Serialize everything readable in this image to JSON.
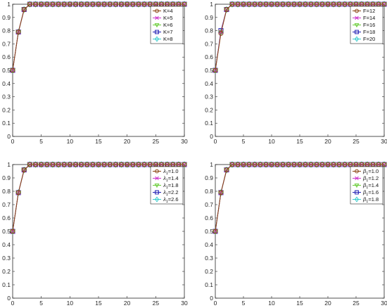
{
  "chart_data": [
    {
      "type": "line",
      "title": "",
      "xlabel": "",
      "ylabel": "",
      "xlim": [
        0,
        30
      ],
      "ylim": [
        0,
        1
      ],
      "xticks": [
        "0",
        "5",
        "10",
        "15",
        "20",
        "25",
        "30"
      ],
      "yticks": [
        "0",
        "0.1",
        "0.2",
        "0.3",
        "0.4",
        "0.5",
        "0.6",
        "0.7",
        "0.8",
        "0.9",
        "1"
      ],
      "legend_position": "top-right",
      "grid": false,
      "x": [
        0,
        1,
        2,
        3,
        4,
        5,
        6,
        7,
        8,
        9,
        10,
        11,
        12,
        13,
        14,
        15,
        16,
        17,
        18,
        19,
        20,
        21,
        22,
        23,
        24,
        25,
        26,
        27,
        28,
        29,
        30
      ],
      "series": [
        {
          "name": "K=4",
          "color": "#8b4513",
          "marker": "circle",
          "values": [
            0.5,
            0.79,
            0.96,
            1,
            1,
            1,
            1,
            1,
            1,
            1,
            1,
            1,
            1,
            1,
            1,
            1,
            1,
            1,
            1,
            1,
            1,
            1,
            1,
            1,
            1,
            1,
            1,
            1,
            1,
            1,
            1
          ]
        },
        {
          "name": "K=5",
          "color": "#cc33cc",
          "marker": "x",
          "values": [
            0.5,
            0.79,
            0.96,
            1,
            1,
            1,
            1,
            1,
            1,
            1,
            1,
            1,
            1,
            1,
            1,
            1,
            1,
            1,
            1,
            1,
            1,
            1,
            1,
            1,
            1,
            1,
            1,
            1,
            1,
            1,
            1
          ]
        },
        {
          "name": "K=6",
          "color": "#66cc33",
          "marker": "triangle-down",
          "values": [
            0.5,
            0.79,
            0.96,
            1,
            1,
            1,
            1,
            1,
            1,
            1,
            1,
            1,
            1,
            1,
            1,
            1,
            1,
            1,
            1,
            1,
            1,
            1,
            1,
            1,
            1,
            1,
            1,
            1,
            1,
            1,
            1
          ]
        },
        {
          "name": "K=7",
          "color": "#1f1fb4",
          "marker": "square",
          "values": [
            0.5,
            0.79,
            0.96,
            1,
            1,
            1,
            1,
            1,
            1,
            1,
            1,
            1,
            1,
            1,
            1,
            1,
            1,
            1,
            1,
            1,
            1,
            1,
            1,
            1,
            1,
            1,
            1,
            1,
            1,
            1,
            1
          ]
        },
        {
          "name": "K=8",
          "color": "#33cccc",
          "marker": "diamond",
          "values": [
            0.5,
            0.79,
            0.96,
            1,
            1,
            1,
            1,
            1,
            1,
            1,
            1,
            1,
            1,
            1,
            1,
            1,
            1,
            1,
            1,
            1,
            1,
            1,
            1,
            1,
            1,
            1,
            1,
            1,
            1,
            1,
            1
          ]
        }
      ]
    },
    {
      "type": "line",
      "title": "",
      "xlabel": "",
      "ylabel": "",
      "xlim": [
        0,
        30
      ],
      "ylim": [
        0,
        1
      ],
      "xticks": [
        "0",
        "5",
        "10",
        "15",
        "20",
        "25",
        "30"
      ],
      "yticks": [
        "0",
        "0.1",
        "0.2",
        "0.3",
        "0.4",
        "0.5",
        "0.6",
        "0.7",
        "0.8",
        "0.9",
        "1"
      ],
      "legend_position": "top-right",
      "grid": false,
      "x": [
        0,
        1,
        2,
        3,
        4,
        5,
        6,
        7,
        8,
        9,
        10,
        11,
        12,
        13,
        14,
        15,
        16,
        17,
        18,
        19,
        20,
        21,
        22,
        23,
        24,
        25,
        26,
        27,
        28,
        29,
        30
      ],
      "series": [
        {
          "name": "F=12",
          "color": "#8b4513",
          "marker": "circle",
          "values": [
            0.5,
            0.78,
            0.96,
            1,
            1,
            1,
            1,
            1,
            1,
            1,
            1,
            1,
            1,
            1,
            1,
            1,
            1,
            1,
            1,
            1,
            1,
            1,
            1,
            1,
            1,
            1,
            1,
            1,
            1,
            1,
            1
          ]
        },
        {
          "name": "F=14",
          "color": "#cc33cc",
          "marker": "x",
          "values": [
            0.5,
            0.79,
            0.96,
            1,
            1,
            1,
            1,
            1,
            1,
            1,
            1,
            1,
            1,
            1,
            1,
            1,
            1,
            1,
            1,
            1,
            1,
            1,
            1,
            1,
            1,
            1,
            1,
            1,
            1,
            1,
            1
          ]
        },
        {
          "name": "F=16",
          "color": "#66cc33",
          "marker": "triangle-down",
          "values": [
            0.5,
            0.79,
            0.96,
            1,
            1,
            1,
            1,
            1,
            1,
            1,
            1,
            1,
            1,
            1,
            1,
            1,
            1,
            1,
            1,
            1,
            1,
            1,
            1,
            1,
            1,
            1,
            1,
            1,
            1,
            1,
            1
          ]
        },
        {
          "name": "F=18",
          "color": "#1f1fb4",
          "marker": "square",
          "values": [
            0.5,
            0.8,
            0.96,
            1,
            1,
            1,
            1,
            1,
            1,
            1,
            1,
            1,
            1,
            1,
            1,
            1,
            1,
            1,
            1,
            1,
            1,
            1,
            1,
            1,
            1,
            1,
            1,
            1,
            1,
            1,
            1
          ]
        },
        {
          "name": "F=20",
          "color": "#33cccc",
          "marker": "diamond",
          "values": [
            0.5,
            0.79,
            0.96,
            1,
            1,
            1,
            1,
            1,
            1,
            1,
            1,
            1,
            1,
            1,
            1,
            1,
            1,
            1,
            1,
            1,
            1,
            1,
            1,
            1,
            1,
            1,
            1,
            1,
            1,
            1,
            1
          ]
        }
      ]
    },
    {
      "type": "line",
      "title": "",
      "xlabel": "",
      "ylabel": "",
      "xlim": [
        0,
        30
      ],
      "ylim": [
        0,
        1
      ],
      "xticks": [
        "0",
        "5",
        "10",
        "15",
        "20",
        "25",
        "30"
      ],
      "yticks": [
        "0",
        "0.1",
        "0.2",
        "0.3",
        "0.4",
        "0.5",
        "0.6",
        "0.7",
        "0.8",
        "0.9",
        "1"
      ],
      "legend_position": "top-right",
      "grid": false,
      "x": [
        0,
        1,
        2,
        3,
        4,
        5,
        6,
        7,
        8,
        9,
        10,
        11,
        12,
        13,
        14,
        15,
        16,
        17,
        18,
        19,
        20,
        21,
        22,
        23,
        24,
        25,
        26,
        27,
        28,
        29,
        30
      ],
      "series": [
        {
          "name": "λ1=1.0",
          "legend_symbol": "λ",
          "legend_sub": "1",
          "legend_value": "=1.0",
          "color": "#8b4513",
          "marker": "circle",
          "values": [
            0.5,
            0.79,
            0.96,
            1,
            1,
            1,
            1,
            1,
            1,
            1,
            1,
            1,
            1,
            1,
            1,
            1,
            1,
            1,
            1,
            1,
            1,
            1,
            1,
            1,
            1,
            1,
            1,
            1,
            1,
            1,
            1
          ]
        },
        {
          "name": "λ1=1.4",
          "legend_symbol": "λ",
          "legend_sub": "1",
          "legend_value": "=1.4",
          "color": "#cc33cc",
          "marker": "x",
          "values": [
            0.5,
            0.79,
            0.96,
            1,
            1,
            1,
            1,
            1,
            1,
            1,
            1,
            1,
            1,
            1,
            1,
            1,
            1,
            1,
            1,
            1,
            1,
            1,
            1,
            1,
            1,
            1,
            1,
            1,
            1,
            1,
            1
          ]
        },
        {
          "name": "λ1=1.8",
          "legend_symbol": "λ",
          "legend_sub": "1",
          "legend_value": "=1.8",
          "color": "#66cc33",
          "marker": "triangle-down",
          "values": [
            0.5,
            0.79,
            0.96,
            1,
            1,
            1,
            1,
            1,
            1,
            1,
            1,
            1,
            1,
            1,
            1,
            1,
            1,
            1,
            1,
            1,
            1,
            1,
            1,
            1,
            1,
            1,
            1,
            1,
            1,
            1,
            1
          ]
        },
        {
          "name": "λ1=2.2",
          "legend_symbol": "λ",
          "legend_sub": "1",
          "legend_value": "=2.2",
          "color": "#1f1fb4",
          "marker": "square",
          "values": [
            0.5,
            0.79,
            0.96,
            1,
            1,
            1,
            1,
            1,
            1,
            1,
            1,
            1,
            1,
            1,
            1,
            1,
            1,
            1,
            1,
            1,
            1,
            1,
            1,
            1,
            1,
            1,
            1,
            1,
            1,
            1,
            1
          ]
        },
        {
          "name": "λ1=2.6",
          "legend_symbol": "λ",
          "legend_sub": "1",
          "legend_value": "=2.6",
          "color": "#33cccc",
          "marker": "diamond",
          "values": [
            0.5,
            0.79,
            0.96,
            1,
            1,
            1,
            1,
            1,
            1,
            1,
            1,
            1,
            1,
            1,
            1,
            1,
            1,
            1,
            1,
            1,
            1,
            1,
            1,
            1,
            1,
            1,
            1,
            1,
            1,
            1,
            1
          ]
        }
      ]
    },
    {
      "type": "line",
      "title": "",
      "xlabel": "",
      "ylabel": "",
      "xlim": [
        0,
        30
      ],
      "ylim": [
        0,
        1
      ],
      "xticks": [
        "0",
        "5",
        "10",
        "15",
        "20",
        "25",
        "30"
      ],
      "yticks": [
        "0",
        "0.1",
        "0.2",
        "0.3",
        "0.4",
        "0.5",
        "0.6",
        "0.7",
        "0.8",
        "0.9",
        "1"
      ],
      "legend_position": "top-right",
      "grid": false,
      "x": [
        0,
        1,
        2,
        3,
        4,
        5,
        6,
        7,
        8,
        9,
        10,
        11,
        12,
        13,
        14,
        15,
        16,
        17,
        18,
        19,
        20,
        21,
        22,
        23,
        24,
        25,
        26,
        27,
        28,
        29,
        30
      ],
      "series": [
        {
          "name": "β1=1.0",
          "legend_symbol": "β",
          "legend_sub": "1",
          "legend_value": "=1.0",
          "color": "#8b4513",
          "marker": "circle",
          "values": [
            0.5,
            0.79,
            0.96,
            1,
            1,
            1,
            1,
            1,
            1,
            1,
            1,
            1,
            1,
            1,
            1,
            1,
            1,
            1,
            1,
            1,
            1,
            1,
            1,
            1,
            1,
            1,
            1,
            1,
            1,
            1,
            1
          ]
        },
        {
          "name": "β1=1.2",
          "legend_symbol": "β",
          "legend_sub": "1",
          "legend_value": "=1.2",
          "color": "#cc33cc",
          "marker": "x",
          "values": [
            0.5,
            0.79,
            0.96,
            1,
            1,
            1,
            1,
            1,
            1,
            1,
            1,
            1,
            1,
            1,
            1,
            1,
            1,
            1,
            1,
            1,
            1,
            1,
            1,
            1,
            1,
            1,
            1,
            1,
            1,
            1,
            1
          ]
        },
        {
          "name": "β1=1.4",
          "legend_symbol": "β",
          "legend_sub": "1",
          "legend_value": "=1.4",
          "color": "#66cc33",
          "marker": "triangle-down",
          "values": [
            0.5,
            0.79,
            0.96,
            1,
            1,
            1,
            1,
            1,
            1,
            1,
            1,
            1,
            1,
            1,
            1,
            1,
            1,
            1,
            1,
            1,
            1,
            1,
            1,
            1,
            1,
            1,
            1,
            1,
            1,
            1,
            1
          ]
        },
        {
          "name": "β1=1.6",
          "legend_symbol": "β",
          "legend_sub": "1",
          "legend_value": "=1.6",
          "color": "#1f1fb4",
          "marker": "square",
          "values": [
            0.5,
            0.79,
            0.96,
            1,
            1,
            1,
            1,
            1,
            1,
            1,
            1,
            1,
            1,
            1,
            1,
            1,
            1,
            1,
            1,
            1,
            1,
            1,
            1,
            1,
            1,
            1,
            1,
            1,
            1,
            1,
            1
          ]
        },
        {
          "name": "β1=1.8",
          "legend_symbol": "β",
          "legend_sub": "1",
          "legend_value": "=1.8",
          "color": "#33cccc",
          "marker": "diamond",
          "values": [
            0.5,
            0.79,
            0.96,
            1,
            1,
            1,
            1,
            1,
            1,
            1,
            1,
            1,
            1,
            1,
            1,
            1,
            1,
            1,
            1,
            1,
            1,
            1,
            1,
            1,
            1,
            1,
            1,
            1,
            1,
            1,
            1
          ]
        }
      ]
    }
  ]
}
